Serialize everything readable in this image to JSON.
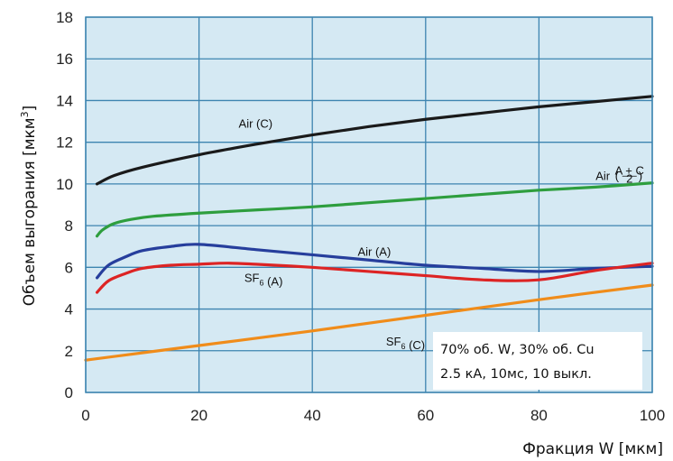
{
  "chart_data": {
    "type": "line",
    "title": "",
    "xlabel": "Фракция W [мкм]",
    "ylabel": {
      "main": "Объем выгорания [мкм",
      "sup": "3",
      "close": "]"
    },
    "xlim": [
      0,
      100
    ],
    "ylim": [
      0,
      18
    ],
    "xticks": [
      "0",
      "20",
      "40",
      "60",
      "80",
      "100"
    ],
    "yticks": [
      "0",
      "2",
      "4",
      "6",
      "8",
      "10",
      "12",
      "14",
      "16",
      "18"
    ],
    "grid": true,
    "background_color": "#d5e9f3",
    "grid_color": "#3d84b0",
    "series": [
      {
        "key": "air_c",
        "color": "#1a1a1a",
        "x": [
          2,
          5,
          10,
          20,
          30,
          40,
          50,
          60,
          70,
          80,
          90,
          100
        ],
        "y": [
          10.0,
          10.4,
          10.8,
          11.4,
          11.9,
          12.35,
          12.75,
          13.1,
          13.4,
          13.7,
          13.95,
          14.2
        ]
      },
      {
        "key": "air_avg",
        "color": "#2e9e3e",
        "x": [
          2,
          3,
          5,
          8,
          12,
          20,
          30,
          40,
          50,
          60,
          70,
          80,
          90,
          100
        ],
        "y": [
          7.5,
          7.8,
          8.1,
          8.3,
          8.45,
          8.6,
          8.75,
          8.9,
          9.1,
          9.3,
          9.5,
          9.7,
          9.85,
          10.05
        ]
      },
      {
        "key": "air_a",
        "color": "#263e9c",
        "x": [
          2,
          4,
          7,
          10,
          15,
          20,
          30,
          40,
          50,
          60,
          70,
          80,
          90,
          100
        ],
        "y": [
          5.5,
          6.1,
          6.5,
          6.8,
          7.0,
          7.1,
          6.85,
          6.6,
          6.35,
          6.1,
          5.95,
          5.8,
          5.95,
          6.05
        ]
      },
      {
        "key": "sf6_a",
        "color": "#dd2424",
        "x": [
          2,
          4,
          7,
          10,
          15,
          20,
          25,
          30,
          40,
          50,
          60,
          70,
          80,
          90,
          100
        ],
        "y": [
          4.8,
          5.35,
          5.7,
          5.95,
          6.1,
          6.15,
          6.2,
          6.15,
          6.0,
          5.8,
          5.6,
          5.4,
          5.4,
          5.85,
          6.2
        ]
      },
      {
        "key": "sf6_c",
        "color": "#f08c1a",
        "x": [
          0,
          20,
          40,
          60,
          80,
          100
        ],
        "y": [
          1.55,
          2.25,
          2.95,
          3.7,
          4.45,
          5.15
        ]
      }
    ],
    "annotations": [
      {
        "id": "air_c",
        "parts": [
          {
            "t": "Air (C)"
          }
        ],
        "x": 27,
        "y": 12.7
      },
      {
        "id": "air_avg",
        "parts": [
          {
            "t": "Air "
          },
          {
            "frac": [
              "A + C",
              "2"
            ]
          }
        ],
        "x": 90,
        "y": 10.2
      },
      {
        "id": "air_a",
        "parts": [
          {
            "t": "Air (A)"
          }
        ],
        "x": 48,
        "y": 6.55
      },
      {
        "id": "sf6_a",
        "parts": [
          {
            "t": "SF"
          },
          {
            "sub": "6"
          },
          {
            "t": " (A)"
          }
        ],
        "x": 28,
        "y": 5.3
      },
      {
        "id": "sf6_c",
        "parts": [
          {
            "t": "SF"
          },
          {
            "sub": "6"
          },
          {
            "t": " (C)"
          }
        ],
        "x": 53,
        "y": 2.25
      }
    ],
    "notes": [
      "70% об. W, 30% об. Cu",
      "2.5 кА, 10мс, 10 выкл."
    ]
  }
}
